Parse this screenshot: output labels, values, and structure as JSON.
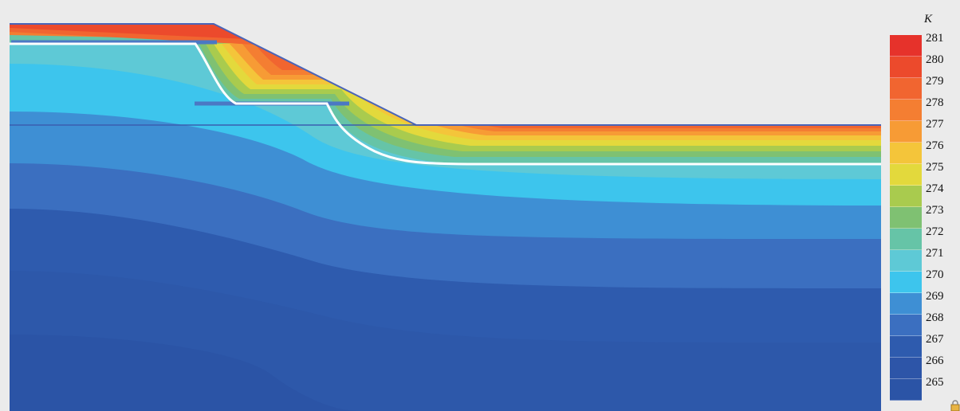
{
  "figure": {
    "colormap": [
      {
        "value": "281",
        "color": "#e6322b"
      },
      {
        "value": "280",
        "color": "#ec4a2c"
      },
      {
        "value": "279",
        "color": "#f16530"
      },
      {
        "value": "278",
        "color": "#f47e32"
      },
      {
        "value": "277",
        "color": "#f79b35"
      },
      {
        "value": "276",
        "color": "#f4c53a"
      },
      {
        "value": "275",
        "color": "#e3d93c"
      },
      {
        "value": "274",
        "color": "#a9cb4e"
      },
      {
        "value": "273",
        "color": "#7fc172"
      },
      {
        "value": "272",
        "color": "#66c4a7"
      },
      {
        "value": "271",
        "color": "#5ec9d6"
      },
      {
        "value": "270",
        "color": "#3dc5ed"
      },
      {
        "value": "269",
        "color": "#3e8fd4"
      },
      {
        "value": "268",
        "color": "#3b6fc0"
      },
      {
        "value": "267",
        "color": "#2e5bae"
      },
      {
        "value": "266",
        "color": "#2d55a8"
      },
      {
        "value": "265",
        "color": "#2b54a6"
      }
    ]
  },
  "legend": {
    "unit": "K",
    "ticks": [
      "281",
      "280",
      "279",
      "278",
      "277",
      "276",
      "275",
      "274",
      "273",
      "272",
      "271",
      "270",
      "269",
      "268",
      "267",
      "266",
      "265"
    ]
  }
}
